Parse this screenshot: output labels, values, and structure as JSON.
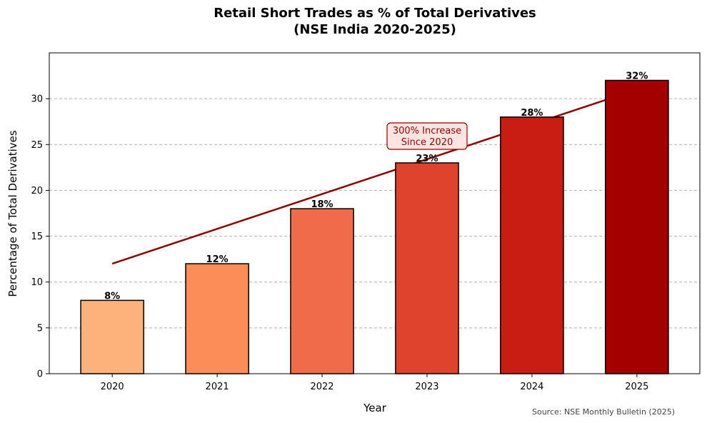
{
  "chart_data": {
    "type": "bar",
    "title_line1": "Retail Short Trades as % of Total Derivatives",
    "title_line2": "(NSE India 2020-2025)",
    "xlabel": "Year",
    "ylabel": "Percentage of Total Derivatives",
    "categories": [
      "2020",
      "2021",
      "2022",
      "2023",
      "2024",
      "2025"
    ],
    "values": [
      8,
      12,
      18,
      23,
      28,
      32
    ],
    "data_labels": [
      "8%",
      "12%",
      "18%",
      "23%",
      "28%",
      "32%"
    ],
    "bar_colors": [
      "#fdb27c",
      "#fc8d59",
      "#ef6b4a",
      "#e0432d",
      "#c91d14",
      "#a50000"
    ],
    "ylim": [
      0,
      35
    ],
    "yticks": [
      0,
      5,
      10,
      15,
      20,
      25,
      30
    ],
    "grid": "y-dashed",
    "trend_line": {
      "x_start": "2020",
      "y_start": 12,
      "x_end": "2025",
      "y_end": 31,
      "color": "#8b0000"
    },
    "annotation": {
      "line1": "300% Increase",
      "line2": "Since 2020",
      "x": "2023",
      "y": 26
    },
    "source": "Source: NSE Monthly Bulletin (2025)"
  }
}
